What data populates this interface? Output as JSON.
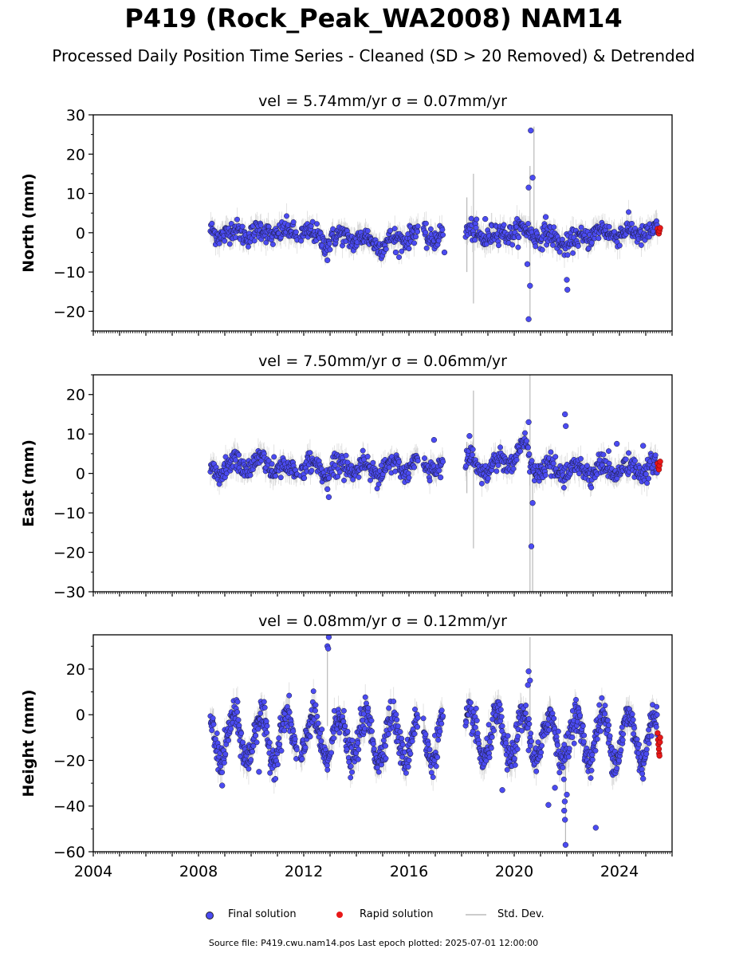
{
  "title": "P419 (Rock_Peak_WA2008) NAM14",
  "subtitle": "Processed Daily Position Time Series - Cleaned (SD > 20 Removed) & Detrended",
  "legend": {
    "final": "Final solution",
    "rapid": "Rapid solution",
    "sd": "Std. Dev."
  },
  "footer": "Source file: P419.cwu.nam14.pos  Last epoch plotted: 2025-07-01 12:00:00",
  "colors": {
    "final": "#4b4bf2",
    "rapid": "#e81818",
    "sd": "#9a9a9a"
  },
  "chart_data": [
    {
      "type": "scatter",
      "component": "north",
      "title": "vel = 5.74mm/yr   σ = 0.07mm/yr",
      "ylabel": "North (mm)",
      "xlim": [
        2004.0,
        2026.0
      ],
      "ylim": [
        -25,
        30
      ],
      "yticks": [
        -20,
        -10,
        0,
        10,
        20,
        30
      ],
      "xticks": [
        2004,
        2008,
        2012,
        2016,
        2020,
        2024
      ],
      "center": [
        [
          2008.5,
          0
        ],
        [
          2011.7,
          0
        ],
        [
          2011.9,
          0.5
        ],
        [
          2012.8,
          -2
        ],
        [
          2013.5,
          -1
        ],
        [
          2014.5,
          -2
        ],
        [
          2015,
          -3
        ],
        [
          2016.3,
          0
        ],
        [
          2016.7,
          -1
        ],
        [
          2017.4,
          -1
        ],
        [
          2018.3,
          0
        ],
        [
          2019,
          -1
        ],
        [
          2020,
          0.5
        ],
        [
          2020.7,
          0
        ],
        [
          2021.7,
          -2
        ],
        [
          2022.1,
          -3
        ],
        [
          2023,
          0
        ],
        [
          2025.5,
          0
        ]
      ],
      "noise": 1.3,
      "seasonal": 1.0,
      "sd_scale": 2.5,
      "outliers": [
        [
          2020.63,
          26
        ],
        [
          2020.55,
          11.5
        ],
        [
          2020.7,
          14
        ],
        [
          2020.6,
          -13.5
        ],
        [
          2020.55,
          -22
        ],
        [
          2020.5,
          -8
        ],
        [
          2022.0,
          -12
        ],
        [
          2022.02,
          -14.5
        ],
        [
          2012.9,
          -7
        ],
        [
          2015.5,
          -5
        ],
        [
          2017.35,
          -5
        ],
        [
          2018.9,
          3.5
        ],
        [
          2021.2,
          4
        ]
      ],
      "sd_spikes": [
        [
          2018.45,
          -18,
          15
        ],
        [
          2020.6,
          -22,
          17
        ],
        [
          2020.75,
          -3,
          27
        ],
        [
          2018.2,
          -10,
          9
        ]
      ],
      "rapid": [
        [
          2025.45,
          1.0
        ],
        [
          2025.48,
          0.2
        ],
        [
          2025.5,
          -0.2
        ],
        [
          2025.52,
          0.5
        ],
        [
          2025.55,
          1.2
        ]
      ]
    },
    {
      "type": "scatter",
      "component": "east",
      "title": "vel = 7.50mm/yr   σ = 0.06mm/yr",
      "ylabel": "East (mm)",
      "xlim": [
        2004.0,
        2026.0
      ],
      "ylim": [
        -30,
        25
      ],
      "yticks": [
        -30,
        -20,
        -10,
        0,
        10,
        20
      ],
      "xticks": [
        2004,
        2008,
        2012,
        2016,
        2020,
        2024
      ],
      "center": [
        [
          2008.5,
          1
        ],
        [
          2010.5,
          3
        ],
        [
          2011.7,
          0
        ],
        [
          2011.9,
          2
        ],
        [
          2012.9,
          1
        ],
        [
          2013.5,
          2
        ],
        [
          2015,
          1
        ],
        [
          2016.3,
          2
        ],
        [
          2017.4,
          2
        ],
        [
          2018.3,
          3
        ],
        [
          2019,
          1
        ],
        [
          2019.8,
          4
        ],
        [
          2020.5,
          6
        ],
        [
          2020.8,
          1
        ],
        [
          2022,
          1
        ],
        [
          2025.5,
          1
        ]
      ],
      "noise": 1.3,
      "seasonal": 1.5,
      "sd_scale": 2.5,
      "outliers": [
        [
          2020.65,
          -18.5
        ],
        [
          2020.55,
          13
        ],
        [
          2020.7,
          -7.5
        ],
        [
          2021.93,
          15
        ],
        [
          2021.96,
          12
        ],
        [
          2018.3,
          9.5
        ],
        [
          2016.95,
          8.5
        ],
        [
          2012.95,
          -6
        ],
        [
          2012.9,
          -4
        ],
        [
          2017.2,
          -1
        ],
        [
          2023.9,
          7.5
        ],
        [
          2024.9,
          7
        ]
      ],
      "sd_spikes": [
        [
          2018.45,
          -19,
          21
        ],
        [
          2020.6,
          -30,
          25
        ],
        [
          2020.7,
          -30,
          4
        ],
        [
          2018.2,
          -5,
          8
        ]
      ],
      "rapid": [
        [
          2025.45,
          2.5
        ],
        [
          2025.48,
          1.5
        ],
        [
          2025.5,
          1.0
        ],
        [
          2025.52,
          2.0
        ],
        [
          2025.55,
          3.0
        ]
      ]
    },
    {
      "type": "scatter",
      "component": "height",
      "title": "vel = 0.08mm/yr   σ = 0.12mm/yr",
      "ylabel": "Height (mm)",
      "xlim": [
        2004.0,
        2026.0
      ],
      "ylim": [
        -60,
        35
      ],
      "yticks": [
        -60,
        -40,
        -20,
        0,
        20
      ],
      "xticks": [
        2004,
        2008,
        2012,
        2016,
        2020,
        2024
      ],
      "center": [
        [
          2008.5,
          -10
        ],
        [
          2025.5,
          -10
        ]
      ],
      "noise": 3.5,
      "seasonal": 10,
      "sd_scale": 5,
      "outliers": [
        [
          2012.95,
          34
        ],
        [
          2012.9,
          30
        ],
        [
          2012.93,
          29
        ],
        [
          2020.55,
          19
        ],
        [
          2020.6,
          15
        ],
        [
          2020.52,
          13
        ],
        [
          2021.95,
          -57
        ],
        [
          2021.93,
          -46
        ],
        [
          2021.9,
          -42
        ],
        [
          2021.92,
          -38
        ],
        [
          2022.0,
          -35
        ],
        [
          2023.1,
          -49.5
        ],
        [
          2021.3,
          -39.5
        ],
        [
          2021.55,
          -32
        ],
        [
          2019.55,
          -33
        ],
        [
          2024.9,
          -28
        ],
        [
          2008.9,
          -31
        ],
        [
          2010.3,
          -25
        ]
      ],
      "sd_spikes": [
        [
          2020.6,
          -8,
          34
        ],
        [
          2012.9,
          -5,
          30
        ],
        [
          2021.95,
          -56,
          -20
        ]
      ],
      "rapid": [
        [
          2025.45,
          -8
        ],
        [
          2025.47,
          -11
        ],
        [
          2025.48,
          -13
        ],
        [
          2025.5,
          -15
        ],
        [
          2025.51,
          -17
        ],
        [
          2025.52,
          -18
        ],
        [
          2025.54,
          -12
        ],
        [
          2025.55,
          -10
        ]
      ]
    }
  ]
}
